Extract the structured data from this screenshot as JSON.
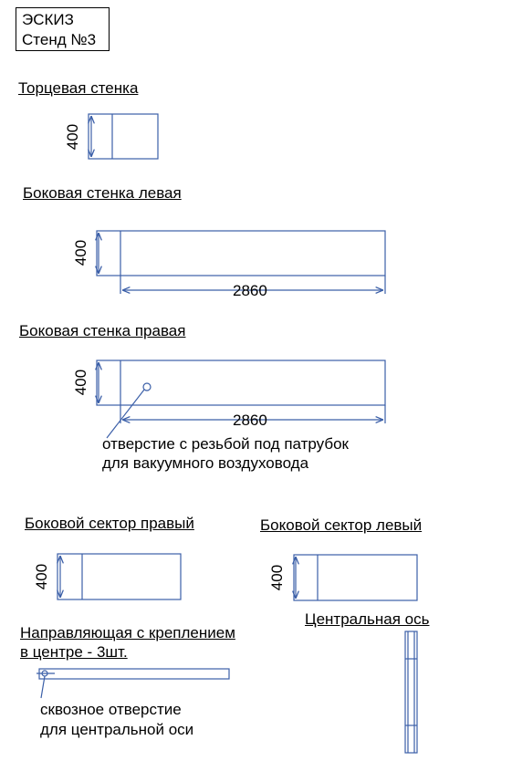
{
  "title_box": {
    "line1": "ЭСКИЗ",
    "line2": "Стенд №3"
  },
  "colors": {
    "line": "#3b5fa8",
    "text": "#000000"
  },
  "parts": {
    "end_wall": {
      "label": "Торцевая стенка",
      "height": "400"
    },
    "side_wall_left": {
      "label": "Боковая стенка левая",
      "height": "400",
      "length": "2860"
    },
    "side_wall_right": {
      "label": "Боковая стенка правая",
      "height": "400",
      "length": "2860",
      "note_line1": "отверстие с резьбой под патрубок",
      "note_line2": "для вакуумного воздуховода"
    },
    "side_sector_right": {
      "label": "Боковой сектор правый",
      "height": "400"
    },
    "side_sector_left": {
      "label": "Боковой сектор левый",
      "height": "400"
    },
    "guide": {
      "label_line1": "Направляющая с креплением ",
      "label_line2": "в центре - 3шт.",
      "note_line1": "сквозное отверстие",
      "note_line2": "для центральной оси"
    },
    "central_axis": {
      "label": "Центральная ось"
    }
  }
}
